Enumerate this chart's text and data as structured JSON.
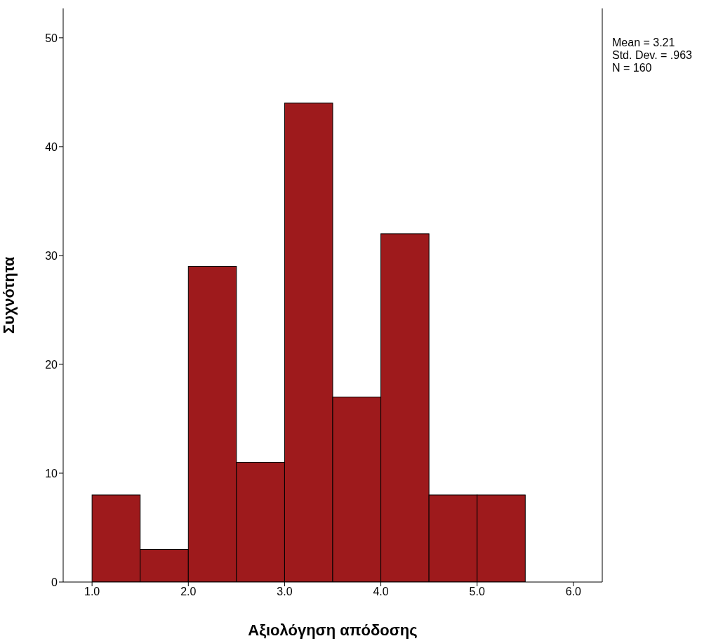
{
  "chart_data": {
    "type": "histogram",
    "xlabel": "Αξιολόγηση απόδοσης",
    "ylabel": "Συχνότητα",
    "bins": [
      1.0,
      1.5,
      2.0,
      2.5,
      3.0,
      3.5,
      4.0,
      4.5,
      5.0,
      5.5
    ],
    "values": [
      8,
      3,
      29,
      11,
      44,
      17,
      32,
      8,
      8
    ],
    "color": "#9e1a1c",
    "xlim": [
      0.7,
      6.3
    ],
    "xticks": [
      {
        "value": 1,
        "label": "1.0"
      },
      {
        "value": 2,
        "label": "2.0"
      },
      {
        "value": 3,
        "label": "3.0"
      },
      {
        "value": 4,
        "label": "4.0"
      },
      {
        "value": 5,
        "label": "5.0"
      },
      {
        "value": 6,
        "label": "6.0"
      }
    ],
    "ylim": [
      0,
      52.7
    ],
    "yticks": [
      0,
      10,
      20,
      30,
      40,
      50
    ],
    "grid": false,
    "legend": false,
    "annotations": [
      "Mean = 3.21",
      "Std. Dev. = .963",
      "N = 160"
    ]
  }
}
